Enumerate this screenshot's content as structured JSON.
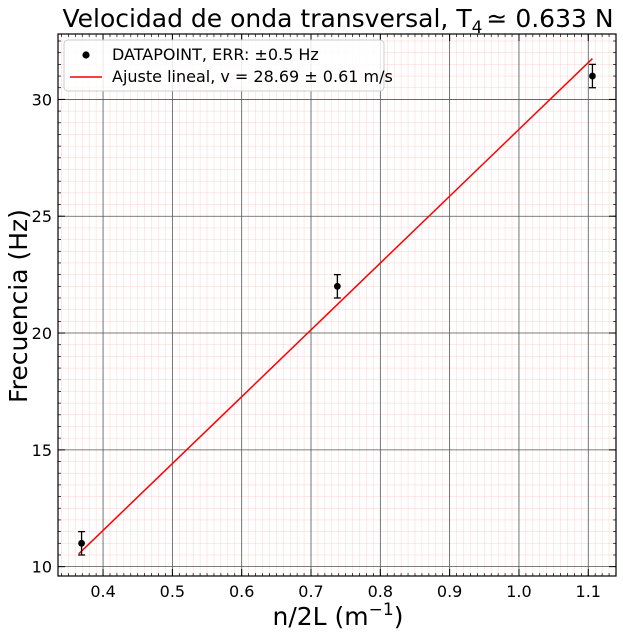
{
  "chart_data": {
    "type": "scatter",
    "title": "Velocidad de onda transversal, T",
    "title_subscript": "4",
    "title_suffix": "≃  0.633 N",
    "xlabel": "n/2L (m",
    "xlabel_sup": "−1",
    "xlabel_close": ")",
    "ylabel": "Frecuencia (Hz)",
    "xlim": [
      0.335,
      1.14
    ],
    "ylim": [
      9.6,
      32.8
    ],
    "x_ticks": [
      0.4,
      0.5,
      0.6,
      0.7,
      0.8,
      0.9,
      1.0,
      1.1
    ],
    "x_tick_labels": [
      "0.4",
      "0.5",
      "0.6",
      "0.7",
      "0.8",
      "0.9",
      "1.0",
      "1.1"
    ],
    "y_ticks": [
      10,
      15,
      20,
      25,
      30
    ],
    "y_tick_labels": [
      "10",
      "15",
      "20",
      "25",
      "30"
    ],
    "grid": true,
    "legend_position": "top-left",
    "series": [
      {
        "name": "DATAPOINT, ERR: ±0.5 Hz",
        "kind": "errorbar",
        "color": "#000000",
        "x": [
          0.369,
          0.738,
          1.106
        ],
        "y": [
          11.0,
          22.0,
          31.0
        ],
        "yerr": 0.5
      },
      {
        "name": "Ajuste lineal, v = 28.69 ± 0.61 m/s",
        "kind": "line",
        "color": "#ff0000",
        "x": [
          0.365,
          1.106
        ],
        "y": [
          10.55,
          31.75
        ]
      }
    ]
  }
}
